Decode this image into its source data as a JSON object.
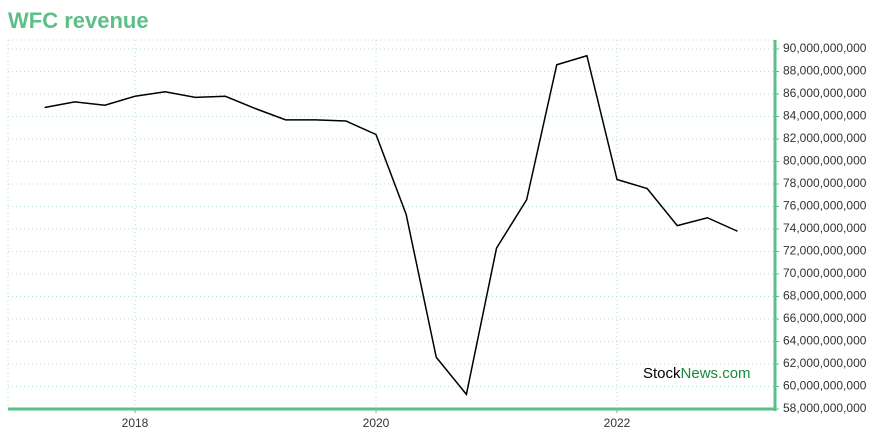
{
  "chart_data": {
    "type": "line",
    "title": "WFC revenue",
    "x": [
      2017.25,
      2017.5,
      2017.75,
      2018,
      2018.25,
      2018.5,
      2018.75,
      2019,
      2019.25,
      2019.5,
      2019.75,
      2020,
      2020.25,
      2020.5,
      2020.75,
      2021,
      2021.25,
      2021.5,
      2021.75,
      2022,
      2022.25,
      2022.5,
      2022.75,
      2023
    ],
    "series": [
      {
        "color": "#000000",
        "values": [
          84800000000,
          85300000000,
          85000000000,
          85800000000,
          86200000000,
          85700000000,
          85800000000,
          84700000000,
          83700000000,
          83700000000,
          83600000000,
          82400000000,
          75300000000,
          62600000000,
          59300000000,
          72300000000,
          76600000000,
          88600000000,
          89400000000,
          78400000000,
          77600000000,
          74300000000,
          75000000000,
          73800000000
        ]
      }
    ],
    "xlim": [
      2016.946,
      2023.311
    ],
    "xticks": [
      2018,
      2020,
      2022
    ],
    "ylim": [
      58000000000,
      90800000000
    ],
    "yticks": [
      {
        "value": 58000000000,
        "label": "58,000,000,000"
      },
      {
        "value": 60000000000,
        "label": "60,000,000,000"
      },
      {
        "value": 62000000000,
        "label": "62,000,000,000"
      },
      {
        "value": 64000000000,
        "label": "64,000,000,000"
      },
      {
        "value": 66000000000,
        "label": "66,000,000,000"
      },
      {
        "value": 68000000000,
        "label": "68,000,000,000"
      },
      {
        "value": 70000000000,
        "label": "70,000,000,000"
      },
      {
        "value": 72000000000,
        "label": "72,000,000,000"
      },
      {
        "value": 74000000000,
        "label": "74,000,000,000"
      },
      {
        "value": 76000000000,
        "label": "76,000,000,000"
      },
      {
        "value": 78000000000,
        "label": "78,000,000,000"
      },
      {
        "value": 80000000000,
        "label": "80,000,000,000"
      },
      {
        "value": 82000000000,
        "label": "82,000,000,000"
      },
      {
        "value": 84000000000,
        "label": "84,000,000,000"
      },
      {
        "value": 86000000000,
        "label": "86,000,000,000"
      },
      {
        "value": 88000000000,
        "label": "88,000,000,000"
      },
      {
        "value": 90000000000,
        "label": "90,000,000,000"
      }
    ],
    "grid": true,
    "axis_color": "#5cbf87",
    "watermark": [
      "Stock",
      "News.com"
    ]
  }
}
